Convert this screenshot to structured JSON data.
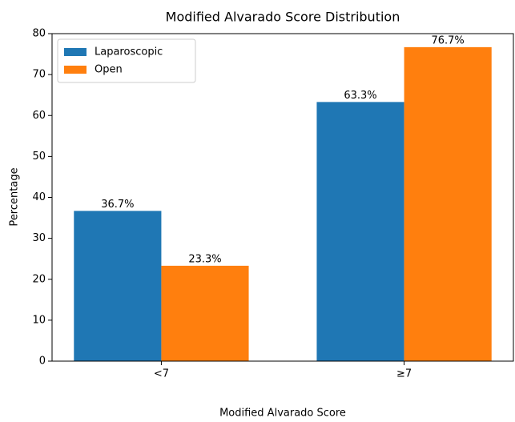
{
  "chart_data": {
    "type": "bar",
    "title": "Modified Alvarado Score Distribution",
    "xlabel": "Modified Alvarado Score",
    "ylabel": "Percentage",
    "categories": [
      "<7",
      "≥7"
    ],
    "series": [
      {
        "name": "Laparoscopic",
        "color": "#1f77b4",
        "values": [
          36.7,
          63.3
        ],
        "value_labels": [
          "36.7%",
          "63.3%"
        ]
      },
      {
        "name": "Open",
        "color": "#ff7f0e",
        "values": [
          23.3,
          76.7
        ],
        "value_labels": [
          "23.3%",
          "76.7%"
        ]
      }
    ],
    "ylim": [
      0,
      80
    ],
    "yticks": [
      0,
      10,
      20,
      30,
      40,
      50,
      60,
      70,
      80
    ],
    "legend": "upper left"
  }
}
